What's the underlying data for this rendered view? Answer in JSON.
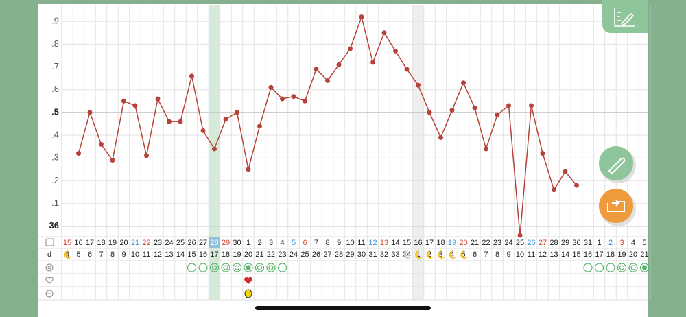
{
  "chart_data": {
    "type": "line",
    "color": "#b5433a",
    "ylim": [
      35.96,
      36.97
    ],
    "yticks": [
      36,
      {
        "value": 36.1,
        "label": ".1"
      },
      {
        "value": 36.2,
        "label": ".2"
      },
      {
        "value": 36.3,
        "label": ".3"
      },
      {
        "value": 36.4,
        "label": ".4"
      },
      {
        "value": 36.5,
        "label": ".5"
      },
      {
        "value": 36.6,
        "label": ".6"
      },
      {
        "value": 36.7,
        "label": ".7"
      },
      {
        "value": 36.8,
        "label": ".8"
      },
      {
        "value": 36.9,
        "label": ".9"
      }
    ],
    "grid": true,
    "categories": [
      "15",
      "16",
      "17",
      "18",
      "19",
      "20",
      "21",
      "22",
      "23",
      "24",
      "25",
      "26",
      "27",
      "28",
      "29",
      "30",
      "1",
      "2",
      "3",
      "4",
      "5",
      "6",
      "7",
      "8",
      "9",
      "10",
      "11",
      "12",
      "13",
      "14",
      "15",
      "16",
      "17",
      "18",
      "19",
      "20",
      "21",
      "22",
      "23",
      "24",
      "25",
      "26",
      "27",
      "28",
      "29",
      "30",
      "31",
      "1",
      "2",
      "3",
      "4",
      "5"
    ],
    "cycle_day_label": "d",
    "cycle_days": [
      "4",
      "5",
      "6",
      "7",
      "8",
      "9",
      "10",
      "11",
      "12",
      "13",
      "14",
      "15",
      "16",
      "17",
      "18",
      "19",
      "20",
      "21",
      "22",
      "23",
      "24",
      "25",
      "26",
      "27",
      "28",
      "29",
      "30",
      "31",
      "32",
      "33",
      "34",
      "1",
      "2",
      "3",
      "4",
      "5",
      "6",
      "7",
      "8",
      "9",
      "10",
      "11",
      "12",
      "13",
      "14",
      "15",
      "16",
      "17",
      "18",
      "19",
      "20",
      "21"
    ],
    "values": [
      null,
      36.32,
      36.5,
      36.36,
      36.29,
      36.55,
      36.53,
      36.31,
      36.56,
      36.46,
      36.46,
      36.66,
      36.42,
      36.34,
      36.47,
      36.5,
      36.25,
      36.44,
      36.61,
      36.56,
      36.57,
      36.55,
      36.69,
      36.64,
      36.71,
      36.78,
      36.92,
      36.72,
      36.85,
      36.77,
      36.69,
      36.62,
      36.5,
      36.39,
      36.51,
      36.63,
      36.52,
      36.34,
      36.49,
      36.53,
      35.96,
      36.53,
      36.32,
      36.16,
      36.24,
      36.18,
      null,
      null,
      null,
      null,
      null,
      null
    ]
  }
}
